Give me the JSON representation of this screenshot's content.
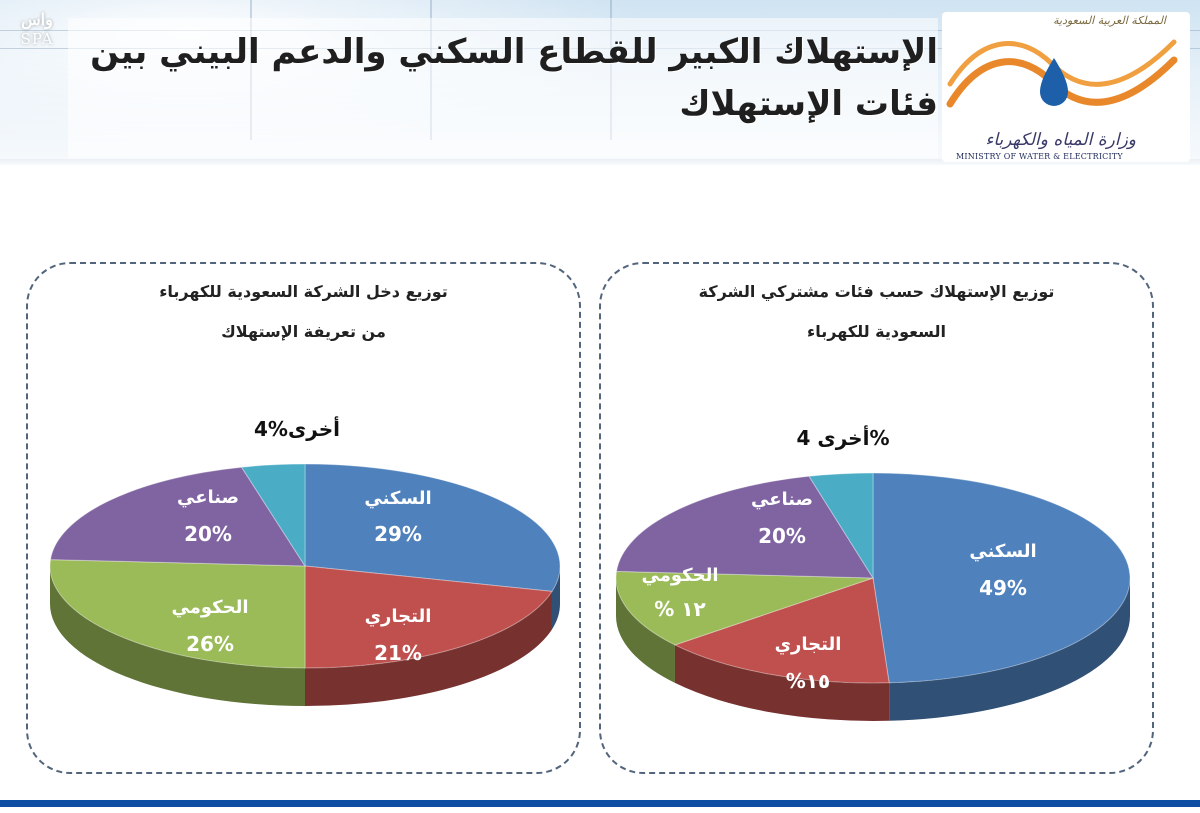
{
  "header": {
    "title": "الإستهلاك الكبير للقطاع السكني والدعم البيني بين فئات الإستهلاك",
    "spa_logo": {
      "arabic": "واس",
      "latin": "SPA"
    },
    "ministry": {
      "kingdom": "المملكة العربية السعودية",
      "name_ar": "وزارة المياه والكهرباء",
      "name_en": "MINISTRY OF WATER & ELECTRICITY"
    }
  },
  "colors": {
    "residential": "#4f81bd",
    "commercial": "#c0504d",
    "government": "#9bbb59",
    "industrial": "#8064a2",
    "other": "#4bacc6",
    "footer": "#0f4ea3"
  },
  "chart_data": [
    {
      "type": "pie",
      "title": "توزيع دخل الشركة السعودية للكهرباء من تعريفة الإستهلاك",
      "title_lines": [
        "توزيع دخل الشركة السعودية للكهرباء",
        "من تعريفة الإستهلاك"
      ],
      "slices": [
        {
          "label": "السكني",
          "value": 29,
          "value_label": "29%"
        },
        {
          "label": "التجاري",
          "value": 21,
          "value_label": "21%"
        },
        {
          "label": "الحكومي",
          "value": 26,
          "value_label": "26%"
        },
        {
          "label": "صناعي",
          "value": 20,
          "value_label": "20%"
        },
        {
          "label": "أخرى",
          "value": 4,
          "value_label": "4%أخرى"
        }
      ]
    },
    {
      "type": "pie",
      "title": "توزيع الإستهلاك حسب فئات مشتركي الشركة السعودية للكهرباء",
      "title_lines": [
        "توزيع الإستهلاك حسب فئات مشتركي الشركة",
        "السعودية للكهرباء"
      ],
      "slices": [
        {
          "label": "السكني",
          "value": 49,
          "value_label": "49%"
        },
        {
          "label": "التجاري",
          "value": 15,
          "value_label": "%١٥"
        },
        {
          "label": "الحكومي",
          "value": 12,
          "value_label": "% ١٢"
        },
        {
          "label": "صناعي",
          "value": 20,
          "value_label": "20%"
        },
        {
          "label": "أخرى",
          "value": 4,
          "value_label": "أخرى 4%"
        }
      ]
    }
  ]
}
